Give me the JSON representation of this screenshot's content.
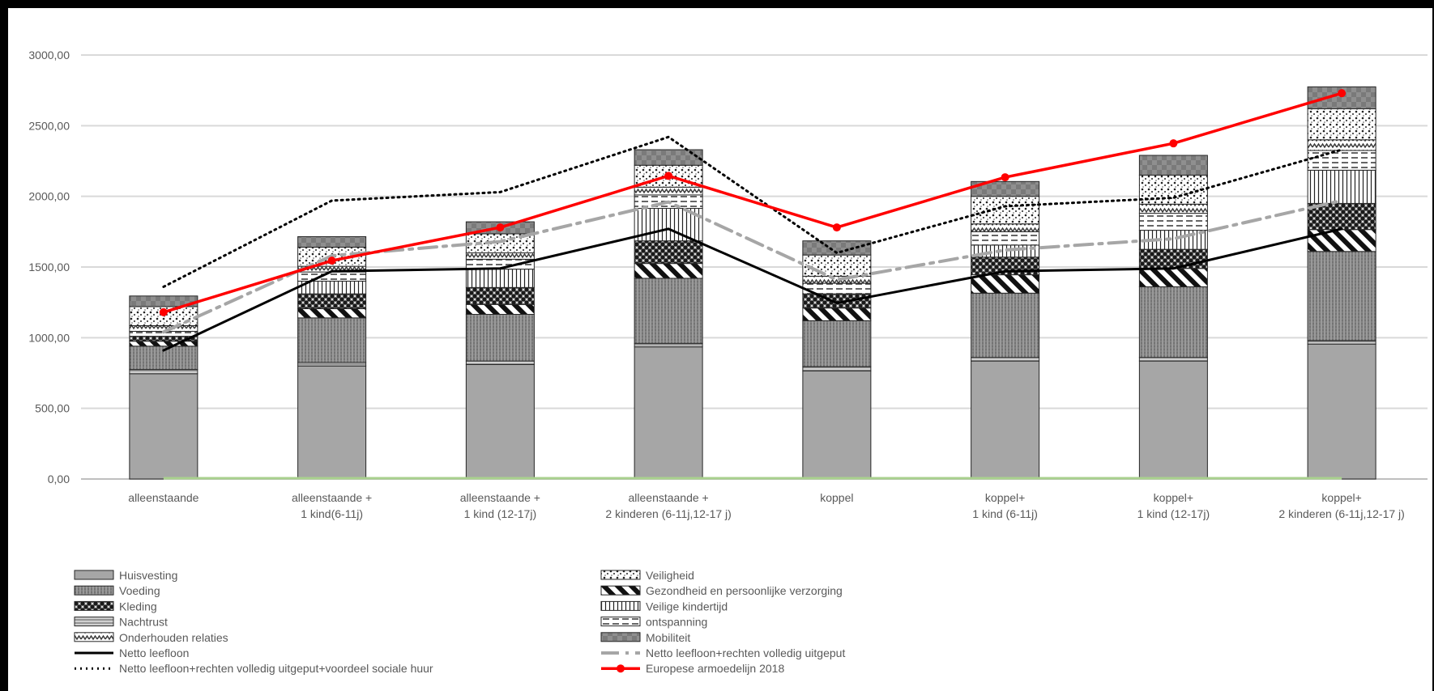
{
  "chart_data": {
    "type": "bar",
    "stacked": true,
    "title": "",
    "xlabel": "",
    "ylabel": "",
    "ylim": [
      0,
      3000
    ],
    "yticks": [
      "0,00",
      "500,00",
      "1000,00",
      "1500,00",
      "2000,00",
      "2500,00",
      "3000,00"
    ],
    "grid": true,
    "legend_position": "bottom",
    "categories": [
      [
        "alleenstaande"
      ],
      [
        "alleenstaande +",
        "1 kind(6-11j)"
      ],
      [
        "alleenstaande +",
        "1 kind (12-17j)"
      ],
      [
        "alleenstaande +",
        "2 kinderen (6-11j,12-17 j)"
      ],
      [
        "koppel"
      ],
      [
        "koppel+",
        "1 kind (6-11j)"
      ],
      [
        "koppel+",
        "1 kind (12-17j)"
      ],
      [
        "koppel+",
        "2 kinderen (6-11j,12-17 j)"
      ]
    ],
    "series": [
      {
        "name": "Huisvesting",
        "pattern": "solid",
        "values": [
          745,
          800,
          810,
          935,
          765,
          835,
          835,
          955
        ]
      },
      {
        "name": "Nachtrust",
        "pattern": "hlines",
        "values": [
          30,
          25,
          25,
          25,
          30,
          25,
          25,
          25
        ]
      },
      {
        "name": "Voeding",
        "pattern": "vdots",
        "values": [
          165,
          315,
          330,
          460,
          325,
          455,
          500,
          630
        ]
      },
      {
        "name": "Gezondheid en persoonlijke verzorging",
        "pattern": "diag",
        "values": [
          35,
          65,
          70,
          105,
          90,
          130,
          130,
          155
        ]
      },
      {
        "name": "Kleding",
        "pattern": "checker",
        "values": [
          35,
          105,
          120,
          160,
          100,
          125,
          135,
          185
        ]
      },
      {
        "name": "Veilige kindertijd",
        "pattern": "vlines",
        "values": [
          0,
          90,
          130,
          230,
          0,
          85,
          135,
          235
        ]
      },
      {
        "name": "ontspanning",
        "pattern": "hdash",
        "values": [
          35,
          65,
          70,
          95,
          75,
          95,
          120,
          140
        ]
      },
      {
        "name": "Onderhouden relaties",
        "pattern": "zigzag",
        "values": [
          40,
          40,
          45,
          55,
          50,
          55,
          65,
          75
        ]
      },
      {
        "name": "Veiligheid",
        "pattern": "dots",
        "values": [
          135,
          135,
          135,
          155,
          150,
          195,
          205,
          220
        ]
      },
      {
        "name": "Mobiliteit",
        "pattern": "darkcheck",
        "values": [
          75,
          75,
          85,
          110,
          100,
          105,
          140,
          155
        ]
      }
    ],
    "lines": [
      {
        "name": "Netto leefloon",
        "style": "solid-black",
        "values": [
          910,
          1470,
          1490,
          1770,
          1245,
          1470,
          1490,
          1770
        ]
      },
      {
        "name": "Netto leefloon+rechten volledig uitgeput",
        "style": "dashdot-gray",
        "values": [
          1040,
          1580,
          1680,
          1960,
          1410,
          1620,
          1700,
          1970
        ]
      },
      {
        "name": "Netto leefloon+rechten volledig uitgeput+voordeel sociale huur",
        "style": "dotted-black",
        "values": [
          1360,
          1970,
          2030,
          2420,
          1600,
          1930,
          1990,
          2330
        ]
      },
      {
        "name": "Europese armoedelijn 2018",
        "style": "red-markers",
        "values": [
          1180,
          1545,
          1780,
          2145,
          1780,
          2135,
          2375,
          2730
        ]
      }
    ],
    "legend_order": [
      "Huisvesting",
      "Veiligheid",
      "Voeding",
      "Gezondheid en persoonlijke verzorging",
      "Kleding",
      "Veilige kindertijd",
      "Nachtrust",
      "ontspanning",
      "Onderhouden relaties",
      "Mobiliteit",
      "Netto leefloon",
      "Netto leefloon+rechten volledig uitgeput",
      "Netto leefloon+rechten volledig uitgeput+voordeel sociale huur",
      "Europese armoedelijn 2018"
    ],
    "colors": {
      "bar_fill": "#a6a6a6",
      "dark_fill": "#7f7f7f",
      "grid": "#d9d9d9",
      "axis": "#bfbfbf",
      "baseline_green": "#a9d18e",
      "red_line": "#ff0000",
      "gray_line": "#a6a6a6",
      "black_line": "#000000"
    }
  }
}
